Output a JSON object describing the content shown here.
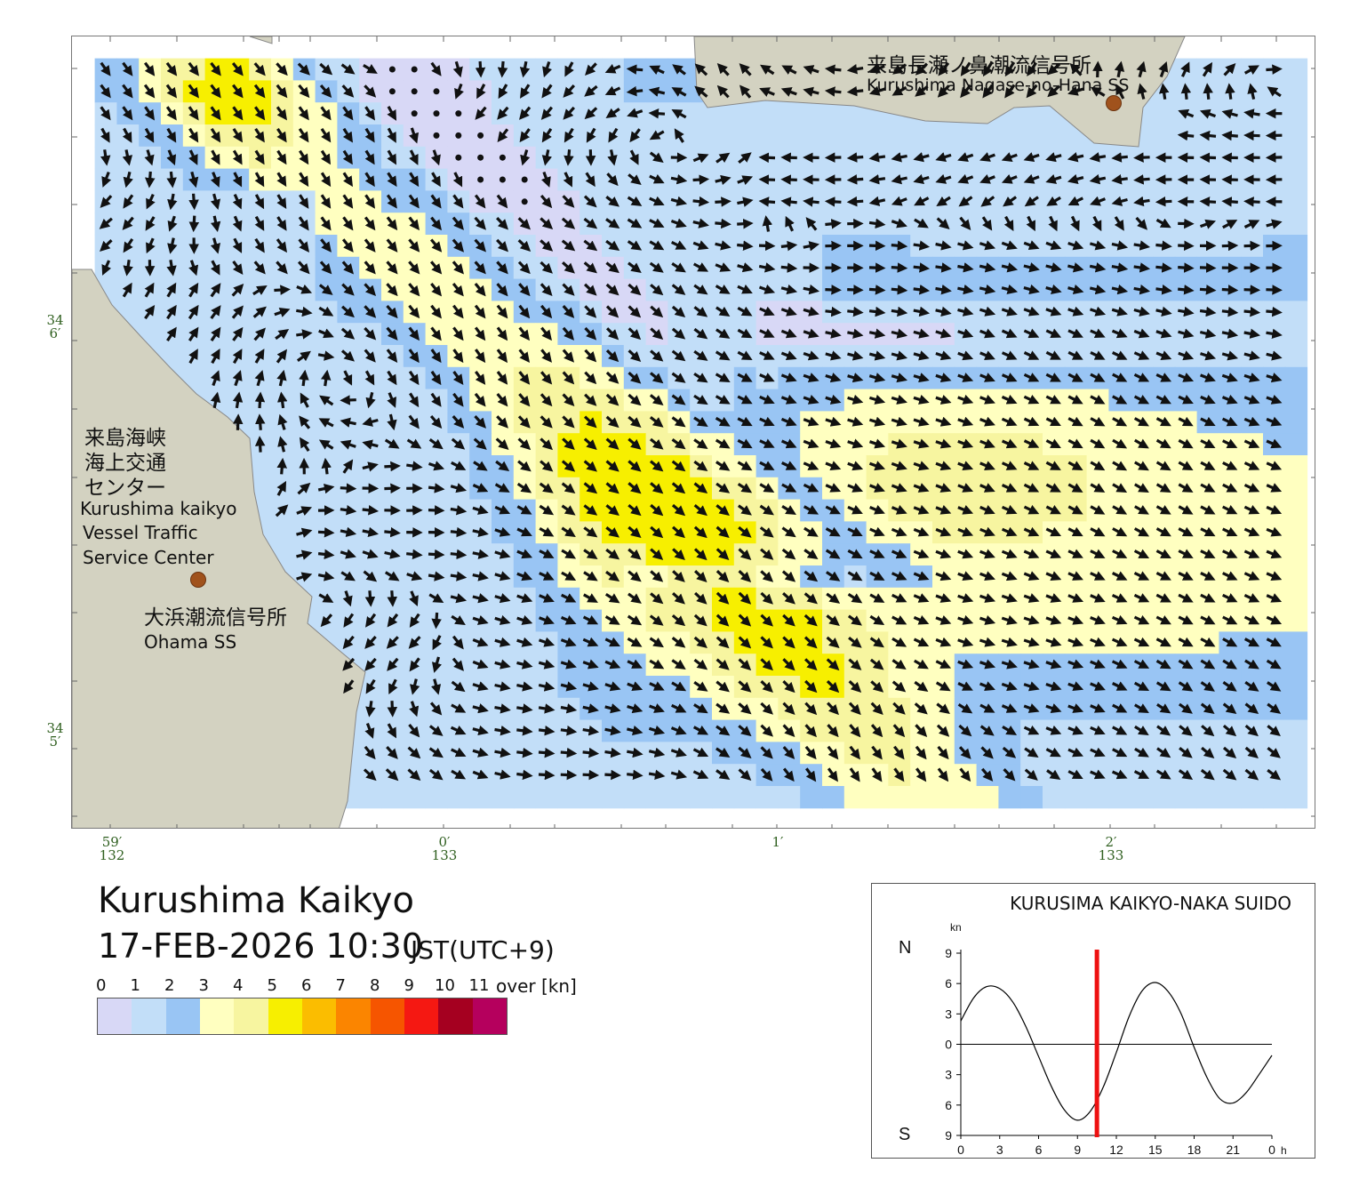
{
  "map": {
    "title": "Kurushima Kaikyo",
    "datetime": "17-FEB-2026 10:30",
    "timezone": "JST(UTC+9)",
    "colors": {
      "land": "#d3d2c1",
      "sea_boundary": "#ffffff"
    },
    "lat_labels": [
      {
        "deg": "34",
        "min": "6′"
      },
      {
        "deg": "34",
        "min": "5′"
      }
    ],
    "lon_labels": [
      {
        "min": "59′",
        "deg": "132"
      },
      {
        "min": "0′",
        "deg": "133"
      },
      {
        "min": "1′",
        "deg": ""
      },
      {
        "min": "2′",
        "deg": "133"
      }
    ],
    "places": [
      {
        "jp": "来島長瀬ノ鼻潮流信号所",
        "en": "Kurushima Nagase-no-Hana SS",
        "type": "signal-station"
      },
      {
        "jp": "来島海峡",
        "jp2": "海上交通",
        "jp3": "センター",
        "en": "Kurushima kaikyo",
        "en2": "Vessel Traffic",
        "en3": "Service Center",
        "type": "vts-center"
      },
      {
        "jp": "大浜潮流信号所",
        "en": "Ohama SS",
        "type": "signal-station"
      }
    ],
    "current_field": {
      "description_flow": "Strong south-easterly set through the central channel; weaker eddies near the coasts.",
      "max_speed_kn": 5.5
    }
  },
  "legend": {
    "ticks": [
      "0",
      "1",
      "2",
      "3",
      "4",
      "5",
      "6",
      "7",
      "8",
      "9",
      "10",
      "11"
    ],
    "over_label": "over",
    "unit": "[kn]",
    "colors": [
      "#d8d8f6",
      "#c2def8",
      "#99c5f4",
      "#ffffc0",
      "#f7f5a0",
      "#f7ef00",
      "#fbbd00",
      "#fb8500",
      "#f65500",
      "#f51812",
      "#a50020",
      "#b5005d"
    ]
  },
  "tide": {
    "title": "KURUSIMA KAIKYO-NAKA SUIDO",
    "unit": "kn",
    "north_label": "N",
    "south_label": "S",
    "y_ticks": [
      "9",
      "6",
      "3",
      "0",
      "3",
      "6",
      "9"
    ],
    "x_ticks": [
      "0",
      "3",
      "6",
      "9",
      "12",
      "15",
      "18",
      "21",
      "0"
    ],
    "x_unit": "h",
    "current_time_h": 10.5,
    "curve_color": "#000000",
    "marker_color": "#ee1111",
    "chart_data": {
      "type": "line",
      "x": [
        0,
        1,
        2,
        3,
        4,
        5,
        6,
        7,
        8,
        9,
        10,
        11,
        12,
        13,
        14,
        15,
        16,
        17,
        18,
        19,
        20,
        21,
        22,
        23,
        24
      ],
      "series": [
        {
          "values": [
            2.3,
            4.6,
            5.7,
            5.5,
            4.2,
            1.8,
            -1.2,
            -4.2,
            -6.5,
            -7.5,
            -6.6,
            -4.2,
            -0.8,
            2.8,
            5.3,
            6.1,
            5.2,
            3.0,
            -0.3,
            -3.3,
            -5.4,
            -5.8,
            -4.8,
            -3.0,
            -1.1
          ]
        }
      ],
      "xlim": [
        0,
        24
      ],
      "ylim": [
        -9,
        9
      ],
      "xlabel": "h",
      "ylabel": "kn",
      "grid": false
    }
  }
}
